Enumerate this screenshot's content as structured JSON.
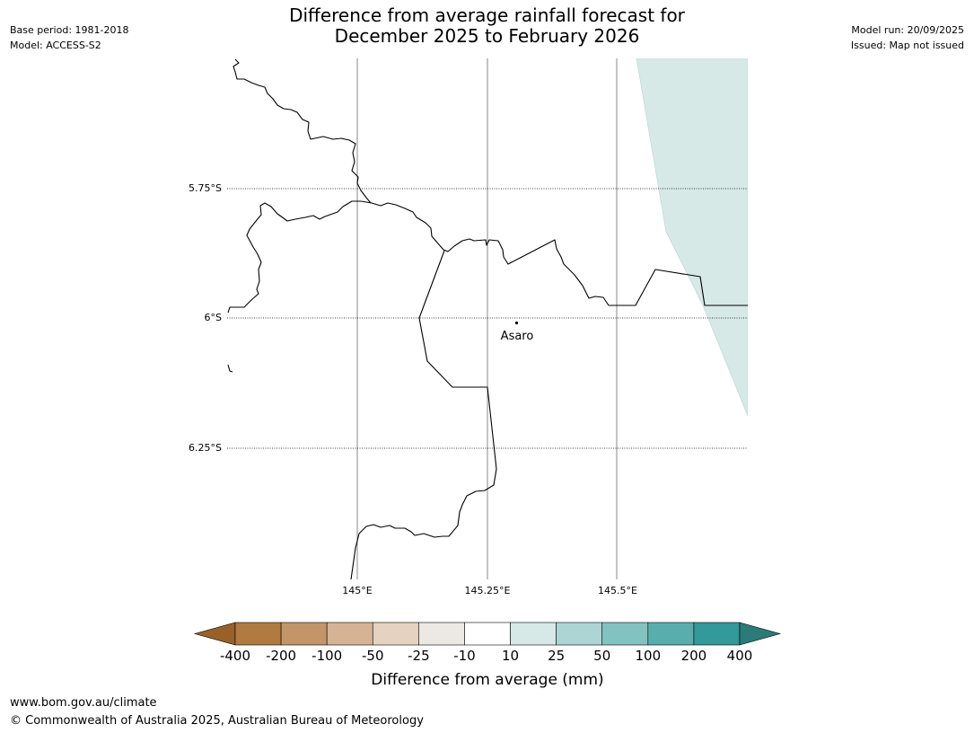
{
  "header": {
    "title_line1": "Difference from average rainfall forecast for",
    "title_line2": "December 2025 to February 2026",
    "base_period": "Base period: 1981-2018",
    "model": "Model: ACCESS-S2",
    "model_run": "Model run: 20/09/2025",
    "issued": "Issued: Map not issued"
  },
  "map": {
    "lat_labels": [
      "5.75°S",
      "6°S",
      "6.25°S"
    ],
    "lon_labels": [
      "145°E",
      "145.25°E",
      "145.5°E"
    ],
    "place": {
      "name": "Asaro"
    }
  },
  "colorbar": {
    "title": "Difference from average (mm)",
    "tick_labels": [
      "-400",
      "-200",
      "-100",
      "-50",
      "-25",
      "-10",
      "10",
      "25",
      "50",
      "100",
      "200",
      "400"
    ],
    "colors": [
      "#99602a",
      "#b07a40",
      "#c39568",
      "#d5b394",
      "#e6d2c0",
      "#ece8e4",
      "#ffffff",
      "#d6e9e7",
      "#acd5d4",
      "#82c2c0",
      "#5aadad",
      "#33999a",
      "#2c7a79"
    ]
  },
  "footer": {
    "url": "www.bom.gov.au/climate",
    "copyright": "© Commonwealth of Australia 2025, Australian Bureau of Meteorology"
  }
}
